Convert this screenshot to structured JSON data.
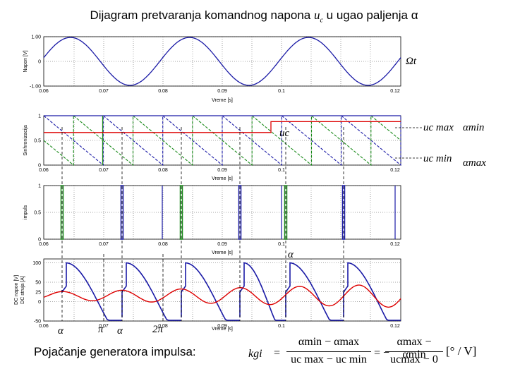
{
  "title": {
    "text": "Dijagram pretvaranja komandnog napona",
    "math": "u",
    "math_sub": "c",
    "text2": "u ugao paljenja α"
  },
  "labels": {
    "omega_t": "Ωt",
    "uc": "uc",
    "uc_max": "uc max",
    "uc_min": "uc min",
    "alpha_min": "αmin",
    "alpha_max": "αmax",
    "alpha_mid": "α",
    "bottom_alpha1": "α",
    "bottom_pi": "π",
    "bottom_alpha2": "α",
    "bottom_2pi": "2π"
  },
  "gain": {
    "label": "Pojačanje generatora impulsa:",
    "lhs": "kgi",
    "num1": "αmin − αmax",
    "den1": "uc max − uc min",
    "num2": "αmax − αmin",
    "den2": "ucmax − 0",
    "unit": "[° / V]"
  },
  "chart_data": [
    {
      "type": "line",
      "ylabel": "Napon [V]",
      "xlabel": "Vreme [s]",
      "xlim": [
        0.06,
        0.12
      ],
      "x_ticks": [
        "0.06",
        "0.07",
        "0.08",
        "0.09",
        "0.1",
        "0.12"
      ],
      "y_ticks": [
        "1.00",
        "0",
        "-1.00"
      ],
      "ylim": [
        -1,
        1
      ],
      "grid": true,
      "series": [
        {
          "color": "#1a1aa6",
          "frequency_hz": 50,
          "amplitude": 1
        }
      ]
    },
    {
      "type": "line",
      "ylabel": "Sinhronizacija",
      "xlabel": "Vreme [s]",
      "xlim": [
        0.06,
        0.12
      ],
      "x_ticks": [
        "0.06",
        "0.07",
        "0.08",
        "0.09",
        "0.1",
        "0.12"
      ],
      "y_ticks": [
        "1",
        "0.5",
        "0"
      ],
      "ylim": [
        0,
        1
      ],
      "grid": true,
      "series": [
        {
          "color": "#1a1aa6",
          "shape": "sawtooth-descending"
        },
        {
          "color": "#1a8a1a",
          "shape": "sawtooth-descending-shifted"
        },
        {
          "color": "#dd0000",
          "shape": "step",
          "levels": [
            0.66,
            0.88
          ]
        }
      ]
    },
    {
      "type": "line",
      "ylabel": "impuls",
      "xlabel": "Vreme [s]",
      "xlim": [
        0.06,
        0.12
      ],
      "x_ticks": [
        "0.06",
        "0.07",
        "0.08",
        "0.09",
        "0.1",
        "0.12"
      ],
      "y_ticks": [
        "1",
        "0.5",
        "0"
      ],
      "ylim": [
        0,
        1
      ],
      "grid": true,
      "series": [
        {
          "color": "#1a1aa6",
          "shape": "pulses"
        },
        {
          "color": "#1a8a1a",
          "shape": "pulses"
        }
      ]
    },
    {
      "type": "line",
      "ylabel": "DC napon [V]",
      "ylabel2": "DC struja [A]",
      "xlabel": "Vreme [s]",
      "xlim": [
        0.06,
        0.12
      ],
      "x_ticks": [
        "0.06",
        "0.07",
        "0.08",
        "0.09",
        "0.1",
        "0.12"
      ],
      "y_ticks": [
        "100",
        "50",
        "25",
        "0",
        "-50"
      ],
      "ylim": [
        -50,
        110
      ],
      "grid": true,
      "series": [
        {
          "color": "#1a1aa6",
          "shape": "rectified-voltage"
        },
        {
          "color": "#dd0000",
          "shape": "dc-current"
        }
      ]
    }
  ]
}
